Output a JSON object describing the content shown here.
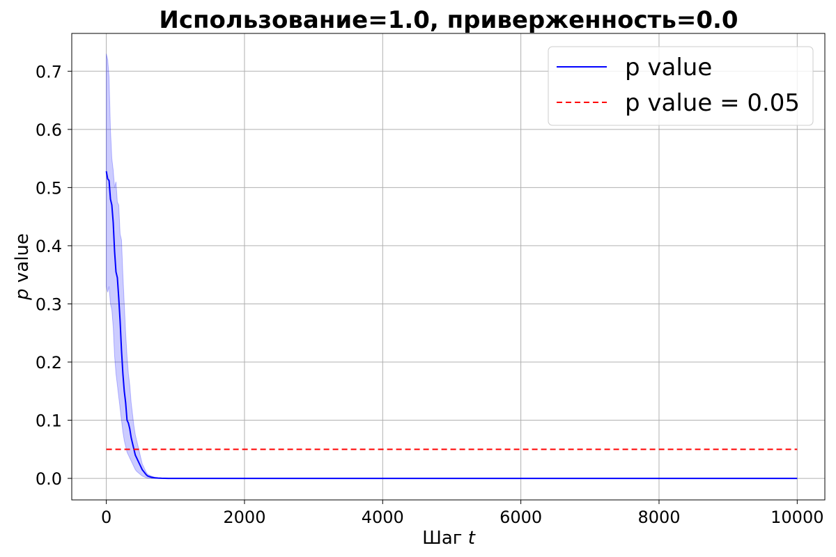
{
  "chart_data": {
    "type": "line",
    "title": "Использование=1.0, приверженность=0.0",
    "xlabel": "Шаг",
    "xlabel_var": "t",
    "ylabel_var": "p",
    "ylabel": " value",
    "xlim": [
      -500,
      10400
    ],
    "ylim": [
      -0.037,
      0.765
    ],
    "xticks": [
      0,
      2000,
      4000,
      6000,
      8000,
      10000
    ],
    "xtick_labels": [
      "0",
      "2000",
      "4000",
      "6000",
      "8000",
      "10000"
    ],
    "yticks": [
      0.0,
      0.1,
      0.2,
      0.3,
      0.4,
      0.5,
      0.6,
      0.7
    ],
    "ytick_labels": [
      "0.0",
      "0.1",
      "0.2",
      "0.3",
      "0.4",
      "0.5",
      "0.6",
      "0.7"
    ],
    "grid": true,
    "legend_position": "top-right",
    "series": [
      {
        "name": "p value",
        "color": "#0000ff",
        "style": "solid",
        "x": [
          0,
          20,
          40,
          60,
          80,
          100,
          120,
          140,
          160,
          180,
          200,
          220,
          240,
          260,
          280,
          300,
          320,
          340,
          360,
          380,
          400,
          420,
          440,
          460,
          480,
          500,
          520,
          540,
          560,
          580,
          600,
          650,
          700,
          750,
          800,
          900,
          1000,
          2000,
          4000,
          6000,
          8000,
          10000
        ],
        "y": [
          0.528,
          0.515,
          0.512,
          0.48,
          0.47,
          0.44,
          0.39,
          0.355,
          0.345,
          0.31,
          0.27,
          0.22,
          0.18,
          0.15,
          0.13,
          0.1,
          0.095,
          0.085,
          0.07,
          0.06,
          0.05,
          0.04,
          0.035,
          0.03,
          0.025,
          0.02,
          0.015,
          0.012,
          0.009,
          0.006,
          0.004,
          0.002,
          0.001,
          0.0005,
          0.0002,
          0.0,
          0.0,
          0.0,
          0.0,
          0.0,
          0.0,
          0.0
        ],
        "band_upper": [
          0.73,
          0.72,
          0.69,
          0.6,
          0.55,
          0.53,
          0.5,
          0.51,
          0.475,
          0.47,
          0.42,
          0.41,
          0.35,
          0.3,
          0.25,
          0.21,
          0.18,
          0.16,
          0.13,
          0.11,
          0.09,
          0.075,
          0.065,
          0.055,
          0.045,
          0.035,
          0.025,
          0.02,
          0.015,
          0.01,
          0.007,
          0.004,
          0.002,
          0.001,
          0.0005,
          0.0,
          0.0,
          0.0,
          0.0,
          0.0,
          0.0,
          0.0
        ],
        "band_lower": [
          0.33,
          0.32,
          0.33,
          0.3,
          0.29,
          0.26,
          0.21,
          0.18,
          0.16,
          0.14,
          0.12,
          0.1,
          0.08,
          0.065,
          0.055,
          0.045,
          0.04,
          0.035,
          0.03,
          0.025,
          0.02,
          0.015,
          0.012,
          0.01,
          0.008,
          0.006,
          0.004,
          0.003,
          0.002,
          0.001,
          0.0005,
          0.0,
          0.0,
          0.0,
          0.0,
          0.0,
          0.0,
          0.0,
          0.0,
          0.0,
          0.0,
          0.0
        ],
        "band_color": "#0000ff",
        "band_opacity": 0.2
      },
      {
        "name": "p value = 0.05",
        "color": "#ff0000",
        "style": "dashed",
        "x": [
          0,
          10000
        ],
        "y": [
          0.05,
          0.05
        ]
      }
    ]
  }
}
